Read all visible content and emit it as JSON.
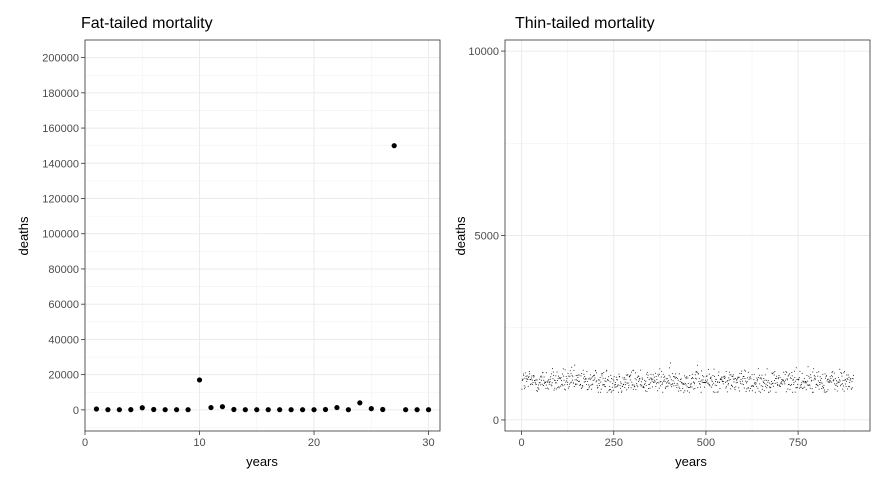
{
  "chart_data": [
    {
      "type": "scatter",
      "title": "Fat-tailed mortality",
      "xlabel": "years",
      "ylabel": "deaths",
      "xlim": [
        0,
        31
      ],
      "ylim": [
        -12000,
        210000
      ],
      "xticks": [
        0,
        10,
        20,
        30
      ],
      "yticks": [
        0,
        20000,
        40000,
        60000,
        80000,
        100000,
        120000,
        140000,
        160000,
        180000,
        200000
      ],
      "grid": true,
      "series": [
        {
          "x": [
            1,
            2,
            3,
            4,
            5,
            6,
            7,
            8,
            9,
            10,
            11,
            12,
            13,
            14,
            15,
            16,
            17,
            18,
            19,
            20,
            21,
            22,
            23,
            24,
            25,
            26,
            27,
            28,
            29,
            30
          ],
          "y": [
            500,
            100,
            100,
            150,
            1200,
            200,
            100,
            100,
            100,
            17000,
            1300,
            1800,
            200,
            100,
            100,
            100,
            100,
            100,
            100,
            100,
            200,
            1300,
            100,
            4000,
            700,
            200,
            150000,
            100,
            100,
            100
          ]
        }
      ]
    },
    {
      "type": "scatter",
      "title": "Thin-tailed mortality",
      "xlabel": "years",
      "ylabel": "deaths",
      "xlim": [
        -45,
        945
      ],
      "ylim": [
        -300,
        10300
      ],
      "xticks": [
        0,
        250,
        500,
        750
      ],
      "yticks": [
        0,
        5000,
        10000
      ],
      "grid": true,
      "series": [
        {
          "x_range": [
            1,
            900
          ],
          "n_points": 900,
          "y_mean": 1050,
          "y_min": 750,
          "y_max": 1600
        }
      ]
    }
  ]
}
